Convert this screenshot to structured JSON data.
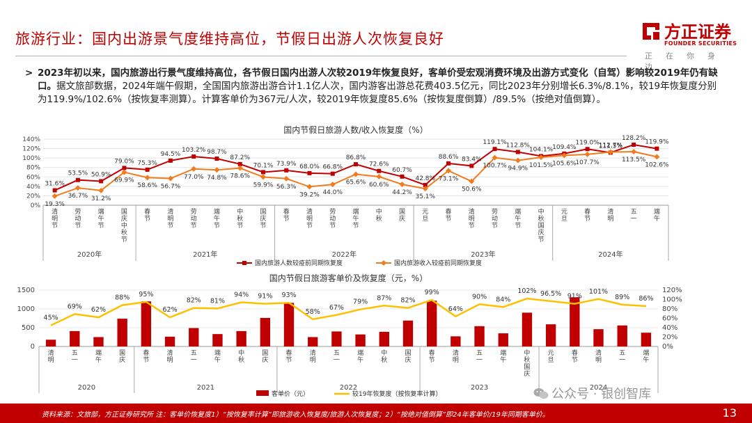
{
  "header": {
    "title": "旅游行业：国内出游景气度维持高位，节假日出游人次恢复良好",
    "logo_cn": "方正证券",
    "logo_en": "FOUNDER SECURITIES",
    "logo_slogan": "正在你身边"
  },
  "bullet": {
    "mark": ">",
    "bold_text": "2023年初以来，国内旅游出行景气度维持高位，各节假日国内出游人次较2019年恢复良好，客单价受宏观消费环境及出游方式变化（自驾）影响较2019年仍有缺口。",
    "body_text": "据文旅部数据，2024年端午假期，全国国内旅游出游合计1.1亿人次，国内游客出游总花费403.5亿元，同比2023年分别增长6.3%/8.1%，较19年恢复度分别为119.9%/102.6%（按恢复率测算）。计算客单价为367元/人次，较2019年恢复度85.6%（按恢复度倒算）/89.5%（按绝对值倒算）。"
  },
  "footer": {
    "source": "资料来源：文旅部，方正证券研究所 注：客单价恢复度1）“按恢复率计算”即旅游收入恢复度/旅游人次恢复度；2）“按绝对值倒算”即24年客单价/19年同期客单价。",
    "page_number": "13"
  },
  "watermark": {
    "text": "公众号 · 银创智库",
    "icon": "wechat-icon"
  },
  "colors": {
    "red": "#c00000",
    "orange": "#f07c1e",
    "yellow": "#ffc000",
    "dark_red": "#c00000"
  },
  "chart_data": [
    {
      "type": "line",
      "title": "国内节假日旅游人数/收入恢复度（%）",
      "categories": [
        "清明节",
        "劳动节",
        "端午节",
        "国庆中秋节",
        "春节",
        "清明节",
        "劳动节",
        "端午节",
        "中秋节",
        "国庆节",
        "春节",
        "清明节",
        "劳动节",
        "端午节",
        "中秋",
        "国庆",
        "元旦",
        "春节",
        "清明节",
        "劳动节",
        "端午节",
        "中秋国庆节",
        "元旦",
        "春节",
        "清明",
        "五一",
        "端午"
      ],
      "groups": [
        {
          "label": "2020年",
          "start": 0,
          "end": 3
        },
        {
          "label": "2021年",
          "start": 4,
          "end": 9
        },
        {
          "label": "2022年",
          "start": 10,
          "end": 15
        },
        {
          "label": "2023年",
          "start": 16,
          "end": 21
        },
        {
          "label": "2024年",
          "start": 22,
          "end": 26
        }
      ],
      "yticks": [
        "0%",
        "20%",
        "40%",
        "60%",
        "80%",
        "100%",
        "120%",
        "140%"
      ],
      "ylim": [
        0,
        140
      ],
      "series": [
        {
          "name": "国内旅游人数较疫前同期恢复度",
          "color": "#c00000",
          "values": [
            31.6,
            53.5,
            50.9,
            79.0,
            75.3,
            94.5,
            103.2,
            98.7,
            87.2,
            70.1,
            73.9,
            68.0,
            66.8,
            86.8,
            72.6,
            60.7,
            42.8,
            88.6,
            83.4,
            119.1,
            112.8,
            104.1,
            109.4,
            119.0,
            111.5,
            128.2,
            119.9
          ],
          "labels": [
            "31.6%",
            "53.5%",
            "50.9%",
            "79.0%",
            "75.3%",
            "94.5%",
            "103.2%",
            "98.7%",
            "87.2%",
            "70.1%",
            "73.9%",
            "68.0%",
            "66.8%",
            "86.8%",
            "72.6%",
            "60.7%",
            "42.8%",
            "88.6%",
            "83.4%",
            "119.1%",
            "112.8%",
            "104.1%",
            "109.4%",
            "119.0%",
            "111.5%",
            "128.2%",
            "119.9%"
          ]
        },
        {
          "name": "国内旅游收入较疫前同期恢复度",
          "color": "#f07c1e",
          "values": [
            19.3,
            36.7,
            31.2,
            69.9,
            58.6,
            56.7,
            77.0,
            74.8,
            78.6,
            59.9,
            56.3,
            39.2,
            44.0,
            65.6,
            60.6,
            44.2,
            35.1,
            73.1,
            50.6,
            100.7,
            94.9,
            101.5,
            105.6,
            107.7,
            112.7,
            113.5,
            102.6
          ],
          "labels": [
            "19.3%",
            "36.7%",
            "31.2%",
            "69.9%",
            "58.6%",
            "56.7%",
            "77.0%",
            "74.8%",
            "78.6%",
            "59.9%",
            "56.3%",
            "39.2%",
            "44.0%",
            "65.6%",
            "60.6%",
            "44.2%",
            "35.1%",
            "73.1%",
            "50.6%",
            "100.7%",
            "94.9%",
            "101.5%",
            "105.6%",
            "107.7%",
            "112.7%",
            "113.5%",
            "102.6%"
          ]
        }
      ],
      "legend": "bottom"
    },
    {
      "type": "bar",
      "title": "国内节假日旅游客单价及恢复度（元，%）",
      "categories": [
        "清明",
        "五一",
        "端午",
        "国庆",
        "春节",
        "清明",
        "五一",
        "端午",
        "中秋",
        "国庆",
        "春节",
        "清明",
        "五一",
        "端午",
        "中秋",
        "国庆",
        "春节",
        "清明",
        "五一",
        "端午",
        "中秋国庆",
        "元旦",
        "春节",
        "清明",
        "五一",
        "端午"
      ],
      "groups": [
        {
          "label": "2020",
          "start": 0,
          "end": 3
        },
        {
          "label": "2021",
          "start": 4,
          "end": 9
        },
        {
          "label": "2022",
          "start": 10,
          "end": 15
        },
        {
          "label": "2023",
          "start": 16,
          "end": 20
        },
        {
          "label": "2024",
          "start": 21,
          "end": 25
        }
      ],
      "left_yticks": [
        "0",
        "500",
        "1000",
        "1500"
      ],
      "left_ylim": [
        0,
        1500
      ],
      "right_yticks": [
        "0%",
        "20%",
        "40%",
        "60%",
        "80%",
        "100%",
        "120%"
      ],
      "right_ylim": [
        0,
        120
      ],
      "series": [
        {
          "name": "客单价（元）",
          "kind": "bar",
          "axis": "left",
          "color": "#c00000",
          "values": [
            180,
            410,
            250,
            740,
            1200,
            260,
            490,
            330,
            410,
            760,
            1160,
            250,
            400,
            320,
            390,
            690,
            1220,
            270,
            540,
            350,
            900,
            590,
            1310,
            460,
            560,
            367
          ]
        },
        {
          "name": "较19年恢复度（按恢复率计算）",
          "kind": "line",
          "axis": "right",
          "color": "#ffc000",
          "values": [
            45,
            69,
            62,
            88,
            95,
            62,
            82,
            81,
            94,
            91,
            93,
            58,
            67,
            79,
            87,
            82,
            99,
            64,
            90,
            84,
            102,
            96.5,
            91,
            101,
            89,
            86
          ],
          "labels": [
            "45%",
            "69%",
            "62%",
            "88%",
            "95%",
            "62%",
            "82%",
            "81%",
            "94%",
            "91%",
            "93%",
            "58%",
            "67%",
            "79%",
            "87%",
            "82%",
            "99%",
            "64%",
            "90%",
            "84%",
            "102%",
            "96.5%",
            "91%",
            "101%",
            "89%",
            "86%"
          ]
        }
      ],
      "legend": "bottom"
    }
  ]
}
